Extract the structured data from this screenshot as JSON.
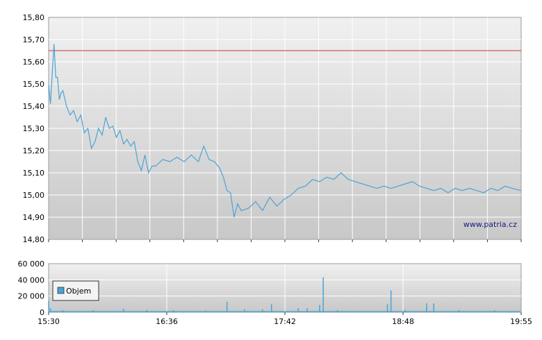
{
  "chart_data": [
    {
      "type": "line",
      "title": "",
      "xlabel": "",
      "ylabel": "",
      "ylim": [
        14.8,
        15.8
      ],
      "y_ticks": [
        "14,80",
        "14,90",
        "15,00",
        "15,10",
        "15,20",
        "15,30",
        "15,40",
        "15,50",
        "15,60",
        "15,70",
        "15,80"
      ],
      "x_range": [
        "15:30",
        "19:55"
      ],
      "reference_line": 15.65,
      "grid": true,
      "series": [
        {
          "color": "#4aa3d6",
          "points": [
            [
              "15:30",
              15.5
            ],
            [
              "15:31",
              15.41
            ],
            [
              "15:32",
              15.54
            ],
            [
              "15:33",
              15.68
            ],
            [
              "15:34",
              15.53
            ],
            [
              "15:35",
              15.53
            ],
            [
              "15:36",
              15.43
            ],
            [
              "15:37",
              15.46
            ],
            [
              "15:38",
              15.47
            ],
            [
              "15:40",
              15.4
            ],
            [
              "15:42",
              15.36
            ],
            [
              "15:44",
              15.38
            ],
            [
              "15:46",
              15.33
            ],
            [
              "15:48",
              15.36
            ],
            [
              "15:50",
              15.28
            ],
            [
              "15:52",
              15.3
            ],
            [
              "15:54",
              15.21
            ],
            [
              "15:56",
              15.24
            ],
            [
              "15:58",
              15.3
            ],
            [
              "16:00",
              15.27
            ],
            [
              "16:02",
              15.35
            ],
            [
              "16:04",
              15.3
            ],
            [
              "16:06",
              15.31
            ],
            [
              "16:08",
              15.26
            ],
            [
              "16:10",
              15.29
            ],
            [
              "16:12",
              15.23
            ],
            [
              "16:14",
              15.25
            ],
            [
              "16:16",
              15.22
            ],
            [
              "16:18",
              15.24
            ],
            [
              "16:20",
              15.15
            ],
            [
              "16:22",
              15.11
            ],
            [
              "16:24",
              15.18
            ],
            [
              "16:26",
              15.1
            ],
            [
              "16:28",
              15.13
            ],
            [
              "16:30",
              15.13
            ],
            [
              "16:34",
              15.16
            ],
            [
              "16:38",
              15.15
            ],
            [
              "16:42",
              15.17
            ],
            [
              "16:46",
              15.15
            ],
            [
              "16:50",
              15.18
            ],
            [
              "16:54",
              15.15
            ],
            [
              "16:57",
              15.22
            ],
            [
              "17:00",
              15.16
            ],
            [
              "17:03",
              15.15
            ],
            [
              "17:06",
              15.12
            ],
            [
              "17:08",
              15.08
            ],
            [
              "17:10",
              15.02
            ],
            [
              "17:12",
              15.01
            ],
            [
              "17:14",
              14.9
            ],
            [
              "17:16",
              14.96
            ],
            [
              "17:18",
              14.93
            ],
            [
              "17:22",
              14.94
            ],
            [
              "17:26",
              14.97
            ],
            [
              "17:30",
              14.93
            ],
            [
              "17:34",
              14.99
            ],
            [
              "17:38",
              14.95
            ],
            [
              "17:42",
              14.98
            ],
            [
              "17:46",
              15.0
            ],
            [
              "17:50",
              15.03
            ],
            [
              "17:54",
              15.04
            ],
            [
              "17:58",
              15.07
            ],
            [
              "18:02",
              15.06
            ],
            [
              "18:06",
              15.08
            ],
            [
              "18:10",
              15.07
            ],
            [
              "18:14",
              15.1
            ],
            [
              "18:18",
              15.07
            ],
            [
              "18:22",
              15.06
            ],
            [
              "18:26",
              15.05
            ],
            [
              "18:30",
              15.04
            ],
            [
              "18:34",
              15.03
            ],
            [
              "18:38",
              15.04
            ],
            [
              "18:42",
              15.03
            ],
            [
              "18:46",
              15.04
            ],
            [
              "18:50",
              15.05
            ],
            [
              "18:54",
              15.06
            ],
            [
              "18:58",
              15.04
            ],
            [
              "19:02",
              15.03
            ],
            [
              "19:06",
              15.02
            ],
            [
              "19:10",
              15.03
            ],
            [
              "19:14",
              15.01
            ],
            [
              "19:18",
              15.03
            ],
            [
              "19:22",
              15.02
            ],
            [
              "19:26",
              15.03
            ],
            [
              "19:30",
              15.02
            ],
            [
              "19:34",
              15.01
            ],
            [
              "19:38",
              15.03
            ],
            [
              "19:42",
              15.02
            ],
            [
              "19:46",
              15.04
            ],
            [
              "19:50",
              15.03
            ],
            [
              "19:55",
              15.02
            ]
          ]
        }
      ],
      "watermark": "www.patria.cz"
    },
    {
      "type": "bar",
      "title": "",
      "xlabel": "",
      "ylabel": "",
      "ylim": [
        0,
        60000
      ],
      "y_ticks": [
        "0",
        "20 000",
        "40 000",
        "60 000"
      ],
      "x_ticks": [
        "15:30",
        "16:36",
        "17:42",
        "18:48",
        "19:55"
      ],
      "legend": [
        "Objem"
      ],
      "legend_position": "left",
      "grid": true,
      "series": [
        {
          "name": "Objem",
          "color": "#4aa3d6",
          "baseline": 1500,
          "bars": [
            [
              "15:30",
              14000
            ],
            [
              "15:31",
              5000
            ],
            [
              "15:38",
              2500
            ],
            [
              "15:55",
              2500
            ],
            [
              "16:12",
              4500
            ],
            [
              "16:25",
              3000
            ],
            [
              "16:40",
              2500
            ],
            [
              "16:58",
              2000
            ],
            [
              "17:10",
              13000
            ],
            [
              "17:20",
              3500
            ],
            [
              "17:30",
              3500
            ],
            [
              "17:35",
              10000
            ],
            [
              "17:50",
              5000
            ],
            [
              "17:55",
              5000
            ],
            [
              "18:02",
              9000
            ],
            [
              "18:04",
              43000
            ],
            [
              "18:12",
              2500
            ],
            [
              "18:40",
              10000
            ],
            [
              "18:42",
              27000
            ],
            [
              "18:50",
              3000
            ],
            [
              "19:02",
              11000
            ],
            [
              "19:06",
              11000
            ],
            [
              "19:20",
              3000
            ],
            [
              "19:40",
              2500
            ]
          ]
        }
      ]
    }
  ]
}
